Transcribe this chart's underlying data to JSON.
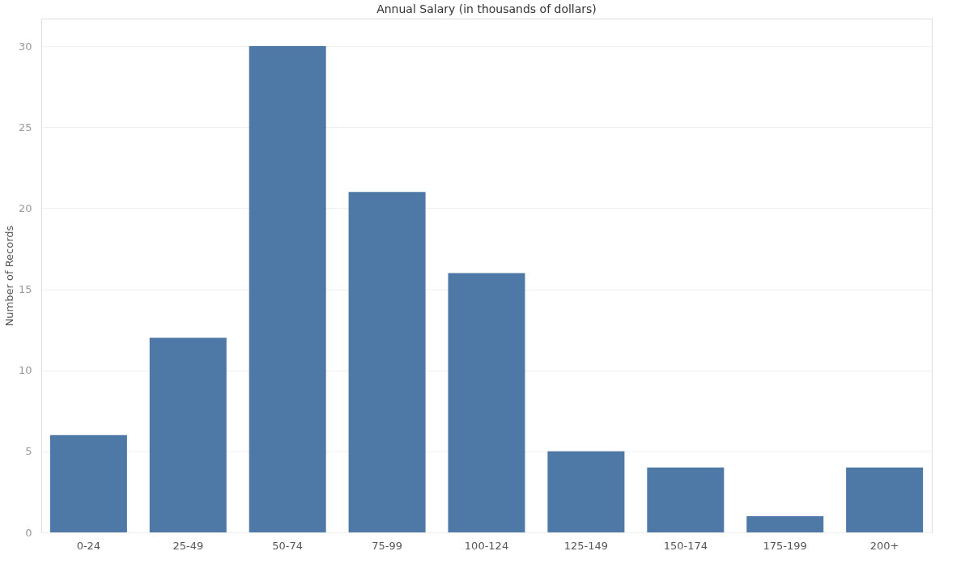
{
  "chart_data": {
    "type": "bar",
    "title": "Annual Salary (in thousands of dollars)",
    "ylabel": "Number of Records",
    "categories": [
      "0-24",
      "25-49",
      "50-74",
      "75-99",
      "100-124",
      "125-149",
      "150-174",
      "175-199",
      "200+"
    ],
    "values": [
      6,
      12,
      30,
      21,
      16,
      5,
      4,
      1,
      4
    ],
    "color": "#4e79a7",
    "ylim": [
      0,
      31.7
    ],
    "yticks": [
      0,
      5,
      10,
      15,
      20,
      25,
      30
    ],
    "grid": "y"
  }
}
